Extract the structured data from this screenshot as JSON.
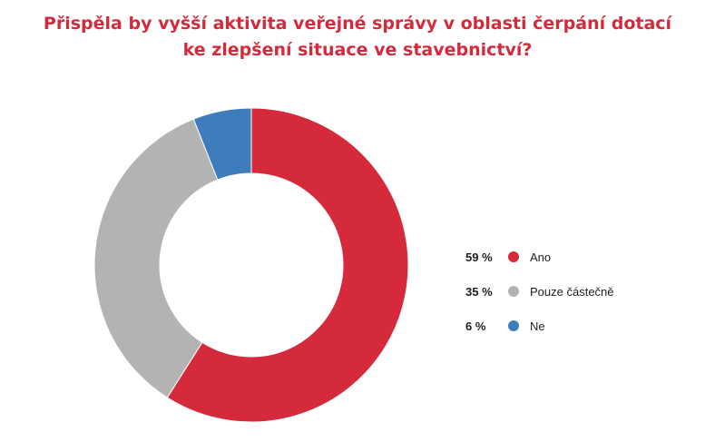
{
  "chart_data": {
    "type": "pie",
    "variant": "donut",
    "title_lines": [
      "Přispěla by vyšší aktivita veřejné správy v oblasti čerpání dotací",
      "ke zlepšení situace ve stavebnictví?"
    ],
    "categories": [
      "Ano",
      "Pouze částečně",
      "Ne"
    ],
    "values": [
      59,
      35,
      6
    ],
    "value_labels": [
      "59 %",
      "35 %",
      "6 %"
    ],
    "colors": [
      "#d42a3c",
      "#b3b3b3",
      "#3f7cbc"
    ],
    "legend_position": "right",
    "title_color": "#d42a3c"
  }
}
